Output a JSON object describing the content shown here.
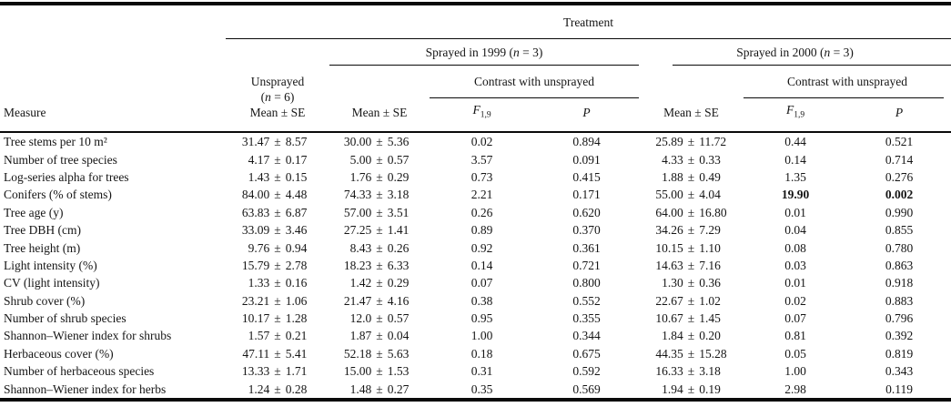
{
  "colors": {
    "background": "#ffffff",
    "text": "#151515",
    "rule": "#0a0a0a"
  },
  "table": {
    "header": {
      "treatment": "Treatment",
      "sprayed_1999": "Sprayed in 1999 (n = 3)",
      "sprayed_2000": "Sprayed in 2000 (n = 3)",
      "measure": "Measure",
      "unsprayed_line1": "Unsprayed",
      "unsprayed_line2": "(n = 6)",
      "mean_se": "Mean ± SE",
      "contrast": "Contrast with unsprayed",
      "f_label": "F",
      "f_sub": "1,9",
      "p_label": "P"
    },
    "rows": [
      {
        "measure": "Tree stems per 10 m²",
        "unsprayed": "31.47 ± 8.57",
        "mean_1999": "30.00 ± 5.36",
        "f_1999": "0.02",
        "p_1999": "0.894",
        "mean_2000": "25.89 ± 11.72",
        "f_2000": "0.44",
        "p_2000": "0.521",
        "bold_contrast_2000": false
      },
      {
        "measure": "Number of tree species",
        "unsprayed": "4.17 ± 0.17",
        "mean_1999": "5.00 ± 0.57",
        "f_1999": "3.57",
        "p_1999": "0.091",
        "mean_2000": "4.33 ± 0.33",
        "f_2000": "0.14",
        "p_2000": "0.714",
        "bold_contrast_2000": false
      },
      {
        "measure": "Log-series alpha for trees",
        "unsprayed": "1.43 ± 0.15",
        "mean_1999": "1.76 ± 0.29",
        "f_1999": "0.73",
        "p_1999": "0.415",
        "mean_2000": "1.88 ± 0.49",
        "f_2000": "1.35",
        "p_2000": "0.276",
        "bold_contrast_2000": false
      },
      {
        "measure": "Conifers (% of stems)",
        "unsprayed": "84.00 ± 4.48",
        "mean_1999": "74.33 ± 3.18",
        "f_1999": "2.21",
        "p_1999": "0.171",
        "mean_2000": "55.00 ± 4.04",
        "f_2000": "19.90",
        "p_2000": "0.002",
        "bold_contrast_2000": true
      },
      {
        "measure": "Tree age (y)",
        "unsprayed": "63.83 ± 6.87",
        "mean_1999": "57.00 ± 3.51",
        "f_1999": "0.26",
        "p_1999": "0.620",
        "mean_2000": "64.00 ± 16.80",
        "f_2000": "0.01",
        "p_2000": "0.990",
        "bold_contrast_2000": false
      },
      {
        "measure": "Tree DBH (cm)",
        "unsprayed": "33.09 ± 3.46",
        "mean_1999": "27.25 ± 1.41",
        "f_1999": "0.89",
        "p_1999": "0.370",
        "mean_2000": "34.26 ± 7.29",
        "f_2000": "0.04",
        "p_2000": "0.855",
        "bold_contrast_2000": false
      },
      {
        "measure": "Tree height (m)",
        "unsprayed": "9.76 ± 0.94",
        "mean_1999": "8.43 ± 0.26",
        "f_1999": "0.92",
        "p_1999": "0.361",
        "mean_2000": "10.15 ± 1.10",
        "f_2000": "0.08",
        "p_2000": "0.780",
        "bold_contrast_2000": false
      },
      {
        "measure": "Light intensity (%)",
        "unsprayed": "15.79 ± 2.78",
        "mean_1999": "18.23 ± 6.33",
        "f_1999": "0.14",
        "p_1999": "0.721",
        "mean_2000": "14.63 ± 7.16",
        "f_2000": "0.03",
        "p_2000": "0.863",
        "bold_contrast_2000": false
      },
      {
        "measure": "CV (light intensity)",
        "unsprayed": "1.33 ± 0.16",
        "mean_1999": "1.42 ± 0.29",
        "f_1999": "0.07",
        "p_1999": "0.800",
        "mean_2000": "1.30 ± 0.36",
        "f_2000": "0.01",
        "p_2000": "0.918",
        "bold_contrast_2000": false
      },
      {
        "measure": "Shrub cover (%)",
        "unsprayed": "23.21 ± 1.06",
        "mean_1999": "21.47 ± 4.16",
        "f_1999": "0.38",
        "p_1999": "0.552",
        "mean_2000": "22.67 ± 1.02",
        "f_2000": "0.02",
        "p_2000": "0.883",
        "bold_contrast_2000": false
      },
      {
        "measure": "Number of shrub species",
        "unsprayed": "10.17 ± 1.28",
        "mean_1999": "12.0 ± 0.57",
        "f_1999": "0.95",
        "p_1999": "0.355",
        "mean_2000": "10.67 ± 1.45",
        "f_2000": "0.07",
        "p_2000": "0.796",
        "bold_contrast_2000": false
      },
      {
        "measure": "Shannon–Wiener index for shrubs",
        "unsprayed": "1.57 ± 0.21",
        "mean_1999": "1.87 ± 0.04",
        "f_1999": "1.00",
        "p_1999": "0.344",
        "mean_2000": "1.84 ± 0.20",
        "f_2000": "0.81",
        "p_2000": "0.392",
        "bold_contrast_2000": false
      },
      {
        "measure": "Herbaceous cover (%)",
        "unsprayed": "47.11 ± 5.41",
        "mean_1999": "52.18 ± 5.63",
        "f_1999": "0.18",
        "p_1999": "0.675",
        "mean_2000": "44.35 ± 15.28",
        "f_2000": "0.05",
        "p_2000": "0.819",
        "bold_contrast_2000": false
      },
      {
        "measure": "Number of herbaceous species",
        "unsprayed": "13.33 ± 1.71",
        "mean_1999": "15.00 ± 1.53",
        "f_1999": "0.31",
        "p_1999": "0.592",
        "mean_2000": "16.33 ± 3.18",
        "f_2000": "1.00",
        "p_2000": "0.343",
        "bold_contrast_2000": false
      },
      {
        "measure": "Shannon–Wiener index for herbs",
        "unsprayed": "1.24 ± 0.28",
        "mean_1999": "1.48 ± 0.27",
        "f_1999": "0.35",
        "p_1999": "0.569",
        "mean_2000": "1.94 ± 0.19",
        "f_2000": "2.98",
        "p_2000": "0.119",
        "bold_contrast_2000": false
      }
    ]
  }
}
